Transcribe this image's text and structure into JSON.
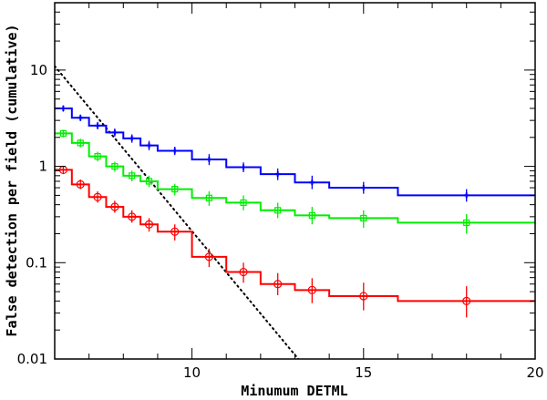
{
  "chart_data": {
    "type": "line",
    "title": "",
    "xlabel": "Minumum DETML",
    "ylabel": "False detection per field (cumulative)",
    "xlim": [
      6,
      20
    ],
    "ylim": [
      0.01,
      50
    ],
    "yscale": "log",
    "x_ticks": [
      10,
      15,
      20
    ],
    "y_ticks": [
      {
        "value": 0.01,
        "label": "0.01"
      },
      {
        "value": 0.1,
        "label": "0.1"
      },
      {
        "value": 1,
        "label": "1"
      },
      {
        "value": 10,
        "label": "10"
      }
    ],
    "grid": false,
    "legend": "none",
    "series": [
      {
        "color": "#0000ff",
        "marker": "cross",
        "steps": [
          [
            6.0,
            4.0
          ],
          [
            6.5,
            3.2
          ],
          [
            7.0,
            2.65
          ],
          [
            7.5,
            2.25
          ],
          [
            8.0,
            1.95
          ],
          [
            8.5,
            1.65
          ],
          [
            9.0,
            1.45
          ],
          [
            10.0,
            1.18
          ],
          [
            11.0,
            0.98
          ],
          [
            12.0,
            0.83
          ],
          [
            13.0,
            0.68
          ],
          [
            14.0,
            0.6
          ],
          [
            16.0,
            0.5
          ],
          [
            20.0,
            0.5
          ]
        ],
        "points": [
          {
            "x": 6.25,
            "y": 4.0,
            "err": [
              3.7,
              4.3
            ]
          },
          {
            "x": 6.75,
            "y": 3.2,
            "err": [
              2.95,
              3.45
            ]
          },
          {
            "x": 7.25,
            "y": 2.65,
            "err": [
              2.42,
              2.9
            ]
          },
          {
            "x": 7.75,
            "y": 2.25,
            "err": [
              2.04,
              2.47
            ]
          },
          {
            "x": 8.25,
            "y": 1.95,
            "err": [
              1.76,
              2.15
            ]
          },
          {
            "x": 8.75,
            "y": 1.65,
            "err": [
              1.47,
              1.84
            ]
          },
          {
            "x": 9.5,
            "y": 1.45,
            "err": [
              1.31,
              1.6
            ]
          },
          {
            "x": 10.5,
            "y": 1.18,
            "err": [
              1.03,
              1.34
            ]
          },
          {
            "x": 11.5,
            "y": 0.98,
            "err": [
              0.87,
              1.1
            ]
          },
          {
            "x": 12.5,
            "y": 0.83,
            "err": [
              0.72,
              0.95
            ]
          },
          {
            "x": 13.5,
            "y": 0.68,
            "err": [
              0.58,
              0.8
            ]
          },
          {
            "x": 15.0,
            "y": 0.6,
            "err": [
              0.52,
              0.69
            ]
          },
          {
            "x": 18.0,
            "y": 0.5,
            "err": [
              0.43,
              0.58
            ]
          }
        ]
      },
      {
        "color": "#00ee00",
        "marker": "square",
        "steps": [
          [
            6.0,
            2.2
          ],
          [
            6.5,
            1.75
          ],
          [
            7.0,
            1.27
          ],
          [
            7.5,
            1.0
          ],
          [
            8.0,
            0.8
          ],
          [
            8.5,
            0.7
          ],
          [
            9.0,
            0.58
          ],
          [
            10.0,
            0.47
          ],
          [
            11.0,
            0.42
          ],
          [
            12.0,
            0.35
          ],
          [
            13.0,
            0.31
          ],
          [
            14.0,
            0.29
          ],
          [
            16.0,
            0.26
          ],
          [
            20.0,
            0.26
          ]
        ],
        "points": [
          {
            "x": 6.25,
            "y": 2.2,
            "err": [
              2.0,
              2.4
            ]
          },
          {
            "x": 6.75,
            "y": 1.75,
            "err": [
              1.58,
              1.93
            ]
          },
          {
            "x": 7.25,
            "y": 1.27,
            "err": [
              1.13,
              1.42
            ]
          },
          {
            "x": 7.75,
            "y": 1.0,
            "err": [
              0.88,
              1.12
            ]
          },
          {
            "x": 8.25,
            "y": 0.8,
            "err": [
              0.7,
              0.9
            ]
          },
          {
            "x": 8.75,
            "y": 0.7,
            "err": [
              0.61,
              0.8
            ]
          },
          {
            "x": 9.5,
            "y": 0.58,
            "err": [
              0.5,
              0.66
            ]
          },
          {
            "x": 10.5,
            "y": 0.47,
            "err": [
              0.39,
              0.55
            ]
          },
          {
            "x": 11.5,
            "y": 0.42,
            "err": [
              0.35,
              0.5
            ]
          },
          {
            "x": 12.5,
            "y": 0.35,
            "err": [
              0.29,
              0.42
            ]
          },
          {
            "x": 13.5,
            "y": 0.31,
            "err": [
              0.25,
              0.38
            ]
          },
          {
            "x": 15.0,
            "y": 0.29,
            "err": [
              0.23,
              0.35
            ]
          },
          {
            "x": 18.0,
            "y": 0.26,
            "err": [
              0.2,
              0.32
            ]
          }
        ]
      },
      {
        "color": "#ff0000",
        "marker": "circle",
        "steps": [
          [
            6.0,
            0.92
          ],
          [
            6.5,
            0.65
          ],
          [
            7.0,
            0.48
          ],
          [
            7.5,
            0.38
          ],
          [
            8.0,
            0.3
          ],
          [
            8.5,
            0.25
          ],
          [
            9.0,
            0.21
          ],
          [
            10.0,
            0.115
          ],
          [
            11.0,
            0.08
          ],
          [
            12.0,
            0.06
          ],
          [
            13.0,
            0.052
          ],
          [
            14.0,
            0.045
          ],
          [
            16.0,
            0.04
          ],
          [
            20.0,
            0.04
          ]
        ],
        "points": [
          {
            "x": 6.25,
            "y": 0.92,
            "err": [
              0.83,
              1.01
            ]
          },
          {
            "x": 6.75,
            "y": 0.65,
            "err": [
              0.58,
              0.73
            ]
          },
          {
            "x": 7.25,
            "y": 0.48,
            "err": [
              0.42,
              0.55
            ]
          },
          {
            "x": 7.75,
            "y": 0.38,
            "err": [
              0.33,
              0.44
            ]
          },
          {
            "x": 8.25,
            "y": 0.3,
            "err": [
              0.26,
              0.35
            ]
          },
          {
            "x": 8.75,
            "y": 0.25,
            "err": [
              0.21,
              0.29
            ]
          },
          {
            "x": 9.5,
            "y": 0.21,
            "err": [
              0.17,
              0.25
            ]
          },
          {
            "x": 10.5,
            "y": 0.115,
            "err": [
              0.09,
              0.14
            ]
          },
          {
            "x": 11.5,
            "y": 0.08,
            "err": [
              0.062,
              0.1
            ]
          },
          {
            "x": 12.5,
            "y": 0.06,
            "err": [
              0.046,
              0.078
            ]
          },
          {
            "x": 13.5,
            "y": 0.052,
            "err": [
              0.038,
              0.069
            ]
          },
          {
            "x": 15.0,
            "y": 0.045,
            "err": [
              0.032,
              0.062
            ]
          },
          {
            "x": 18.0,
            "y": 0.04,
            "err": [
              0.027,
              0.057
            ]
          }
        ]
      }
    ],
    "reference_line": {
      "color": "#000000",
      "style": "dotted",
      "points": [
        [
          6.0,
          11.0
        ],
        [
          13.1,
          0.01
        ]
      ]
    }
  }
}
